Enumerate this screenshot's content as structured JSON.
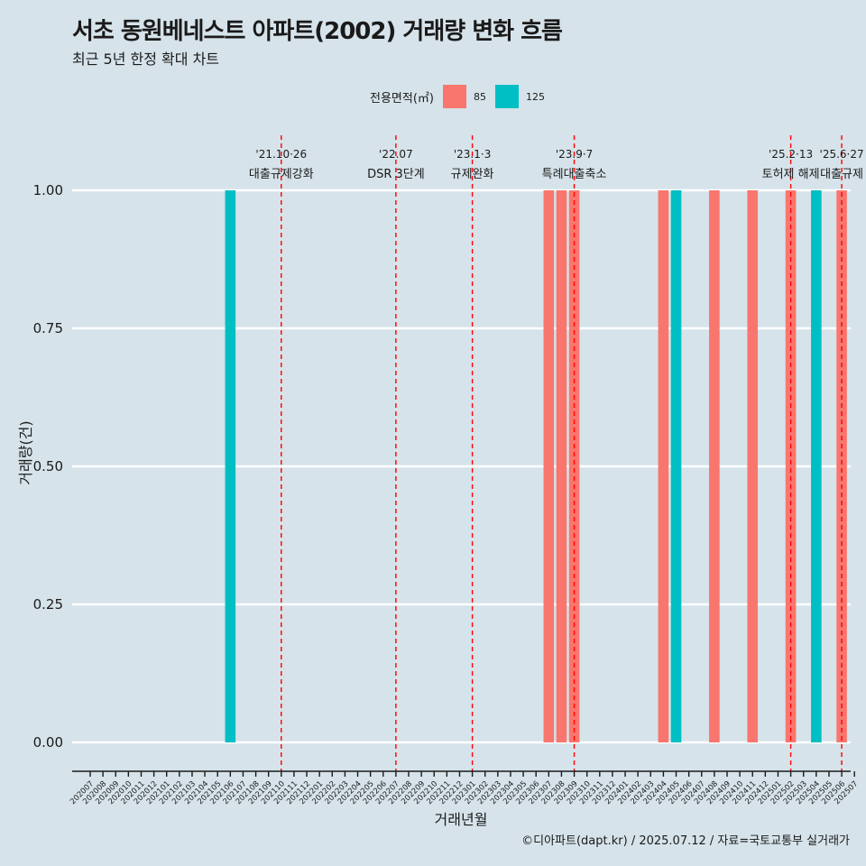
{
  "title": "서초 동원베네스트 아파트(2002) 거래량 변화 흐름",
  "subtitle": "최근 5년 한정 확대 차트",
  "caption": "©디아파트(dapt.kr) / 2025.07.12 / 자료=국토교통부 실거래가",
  "legend": {
    "title": "전용면적(㎡)",
    "entries": [
      {
        "label": "85",
        "color": "#f8766d"
      },
      {
        "label": "125",
        "color": "#00bfc4"
      }
    ]
  },
  "chart_data": {
    "type": "bar",
    "xlabel": "거래년월",
    "ylabel": "거래량(건)",
    "ylim": [
      0,
      1
    ],
    "yticks": [
      "0.00",
      "0.25",
      "0.50",
      "0.75",
      "1.00"
    ],
    "categories": [
      "202007",
      "202008",
      "202009",
      "202010",
      "202011",
      "202012",
      "202101",
      "202102",
      "202103",
      "202104",
      "202105",
      "202106",
      "202107",
      "202108",
      "202109",
      "202110",
      "202111",
      "202112",
      "202201",
      "202202",
      "202203",
      "202204",
      "202205",
      "202206",
      "202207",
      "202208",
      "202209",
      "202210",
      "202211",
      "202212",
      "202301",
      "202302",
      "202303",
      "202304",
      "202305",
      "202306",
      "202307",
      "202308",
      "202309",
      "202310",
      "202311",
      "202312",
      "202401",
      "202402",
      "202403",
      "202404",
      "202405",
      "202406",
      "202407",
      "202408",
      "202409",
      "202410",
      "202411",
      "202412",
      "202501",
      "202502",
      "202503",
      "202504",
      "202505",
      "202506",
      "202507"
    ],
    "series": [
      {
        "name": "85",
        "color": "#f8766d",
        "points": [
          {
            "x": "202307",
            "y": 1
          },
          {
            "x": "202308",
            "y": 1
          },
          {
            "x": "202309",
            "y": 1
          },
          {
            "x": "202404",
            "y": 1
          },
          {
            "x": "202408",
            "y": 1
          },
          {
            "x": "202411",
            "y": 1
          },
          {
            "x": "202502",
            "y": 1
          },
          {
            "x": "202506",
            "y": 1
          }
        ]
      },
      {
        "name": "125",
        "color": "#00bfc4",
        "points": [
          {
            "x": "202106",
            "y": 1
          },
          {
            "x": "202405",
            "y": 1
          },
          {
            "x": "202504",
            "y": 1
          }
        ]
      }
    ],
    "events": [
      {
        "x": "202110",
        "date": "'21.10·26",
        "text": "대출규제강화"
      },
      {
        "x": "202207",
        "date": "'22.07",
        "text": "DSR 3단계"
      },
      {
        "x": "202301",
        "date": "'23.1·3",
        "text": "규제완화"
      },
      {
        "x": "202309",
        "date": "'23.9·7",
        "text": "특례대출축소"
      },
      {
        "x": "202502",
        "date": "'25.2·13",
        "text": "토허제 해제"
      },
      {
        "x": "202506",
        "date": "'25.6·27",
        "text": "대출규제"
      }
    ]
  }
}
